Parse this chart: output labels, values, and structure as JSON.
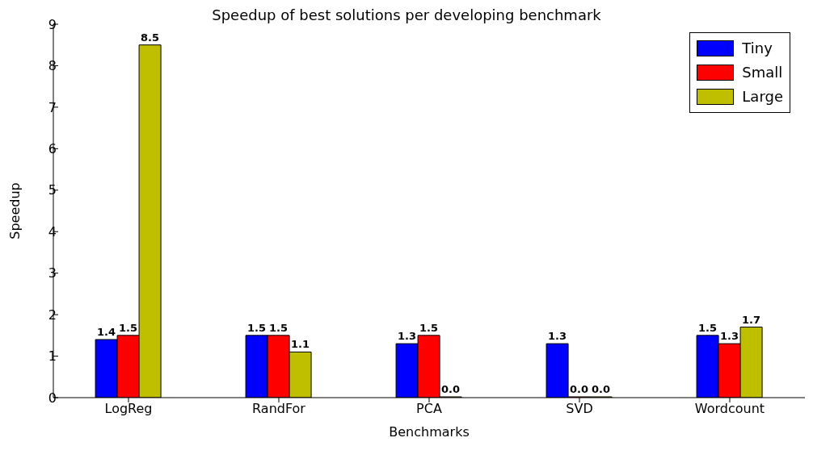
{
  "chart_data": {
    "type": "bar",
    "title": "Speedup of best solutions per developing benchmark",
    "xlabel": "Benchmarks",
    "ylabel": "Speedup",
    "categories": [
      "LogReg",
      "RandFor",
      "PCA",
      "SVD",
      "Wordcount"
    ],
    "series": [
      {
        "name": "Tiny",
        "color": "#0000ff",
        "values": [
          1.4,
          1.5,
          1.3,
          1.3,
          1.5
        ],
        "value_labels": [
          "1.4",
          "1.5",
          "1.3",
          "1.3",
          "1.5"
        ]
      },
      {
        "name": "Small",
        "color": "#ff0000",
        "values": [
          1.5,
          1.5,
          1.5,
          0,
          1.3
        ],
        "value_labels": [
          "1.5",
          "1.5",
          "1.5",
          "0.0",
          "1.3"
        ]
      },
      {
        "name": "Large",
        "color": "#bfbf00",
        "values": [
          8.5,
          1.1,
          0,
          0,
          1.7
        ],
        "value_labels": [
          "8.5",
          "1.1",
          "0.0",
          "0.0",
          "1.7"
        ]
      }
    ],
    "ylim": [
      0,
      9
    ],
    "yticks": [
      0,
      1,
      2,
      3,
      4,
      5,
      6,
      7,
      8,
      9
    ],
    "grid": false,
    "legend": "top right"
  }
}
